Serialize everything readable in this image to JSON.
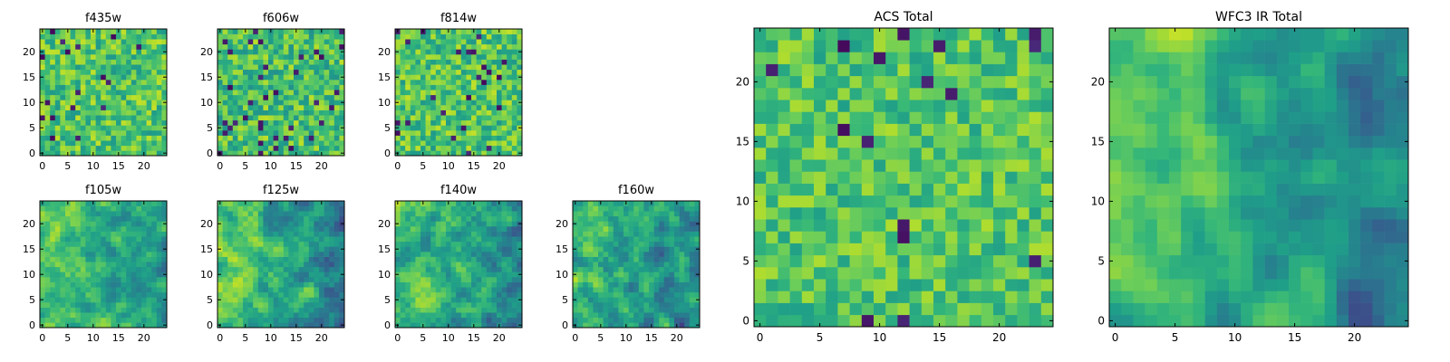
{
  "chart_data": {
    "type": "heatmap",
    "colormap": "viridis",
    "pixel_grid": [
      25,
      25
    ],
    "panels": [
      {
        "key": "f435w",
        "title": "f435w",
        "xticks": [
          "0",
          "5",
          "10",
          "15",
          "20"
        ],
        "yticks": [
          "0",
          "5",
          "10",
          "15",
          "20"
        ],
        "xlim": [
          0,
          25
        ],
        "ylim": [
          0,
          25
        ],
        "mean": 0.72,
        "spread": 0.24,
        "dark_fraction": 0.04,
        "seed": 11,
        "smooth": 0
      },
      {
        "key": "f606w",
        "title": "f606w",
        "xticks": [
          "0",
          "5",
          "10",
          "15",
          "20"
        ],
        "yticks": [
          "0",
          "5",
          "10",
          "15",
          "20"
        ],
        "xlim": [
          0,
          25
        ],
        "ylim": [
          0,
          25
        ],
        "mean": 0.7,
        "spread": 0.25,
        "dark_fraction": 0.05,
        "seed": 23,
        "smooth": 0
      },
      {
        "key": "f814w",
        "title": "f814w",
        "xticks": [
          "0",
          "5",
          "10",
          "15",
          "20"
        ],
        "yticks": [
          "0",
          "5",
          "10",
          "15",
          "20"
        ],
        "xlim": [
          0,
          25
        ],
        "ylim": [
          0,
          25
        ],
        "mean": 0.72,
        "spread": 0.24,
        "dark_fraction": 0.04,
        "seed": 37,
        "smooth": 0
      },
      {
        "key": "f105w",
        "title": "f105w",
        "xticks": [
          "0",
          "5",
          "10",
          "15",
          "20"
        ],
        "yticks": [
          "0",
          "5",
          "10",
          "15",
          "20"
        ],
        "xlim": [
          0,
          25
        ],
        "ylim": [
          0,
          25
        ],
        "mean": 0.62,
        "spread": 0.3,
        "dark_fraction": 0.0,
        "seed": 41,
        "smooth": 2
      },
      {
        "key": "f125w",
        "title": "f125w",
        "xticks": [
          "0",
          "5",
          "10",
          "15",
          "20"
        ],
        "yticks": [
          "0",
          "5",
          "10",
          "15",
          "20"
        ],
        "xlim": [
          0,
          25
        ],
        "ylim": [
          0,
          25
        ],
        "mean": 0.6,
        "spread": 0.32,
        "dark_fraction": 0.0,
        "seed": 53,
        "smooth": 2
      },
      {
        "key": "f140w",
        "title": "f140w",
        "xticks": [
          "0",
          "5",
          "10",
          "15",
          "20"
        ],
        "yticks": [
          "0",
          "5",
          "10",
          "15",
          "20"
        ],
        "xlim": [
          0,
          25
        ],
        "ylim": [
          0,
          25
        ],
        "mean": 0.6,
        "spread": 0.32,
        "dark_fraction": 0.0,
        "seed": 67,
        "smooth": 2
      },
      {
        "key": "f160w",
        "title": "f160w",
        "xticks": [
          "0",
          "5",
          "10",
          "15",
          "20"
        ],
        "yticks": [
          "0",
          "5",
          "10",
          "15",
          "20"
        ],
        "xlim": [
          0,
          25
        ],
        "ylim": [
          0,
          25
        ],
        "mean": 0.58,
        "spread": 0.34,
        "dark_fraction": 0.0,
        "seed": 79,
        "smooth": 2
      },
      {
        "key": "acs_total",
        "title": "ACS Total",
        "xticks": [
          "0",
          "5",
          "10",
          "15",
          "20"
        ],
        "yticks": [
          "0",
          "5",
          "10",
          "15",
          "20"
        ],
        "xlim": [
          0,
          25
        ],
        "ylim": [
          0,
          25
        ],
        "mean": 0.72,
        "spread": 0.2,
        "dark_fraction": 0.03,
        "seed": 97,
        "smooth": 0
      },
      {
        "key": "wfc3_ir_total",
        "title": "WFC3 IR Total",
        "xticks": [
          "0",
          "5",
          "10",
          "15",
          "20"
        ],
        "yticks": [
          "0",
          "5",
          "10",
          "15",
          "20"
        ],
        "xlim": [
          0,
          25
        ],
        "ylim": [
          0,
          25
        ],
        "mean": 0.58,
        "spread": 0.36,
        "dark_fraction": 0.0,
        "seed": 131,
        "smooth": 3
      }
    ]
  }
}
